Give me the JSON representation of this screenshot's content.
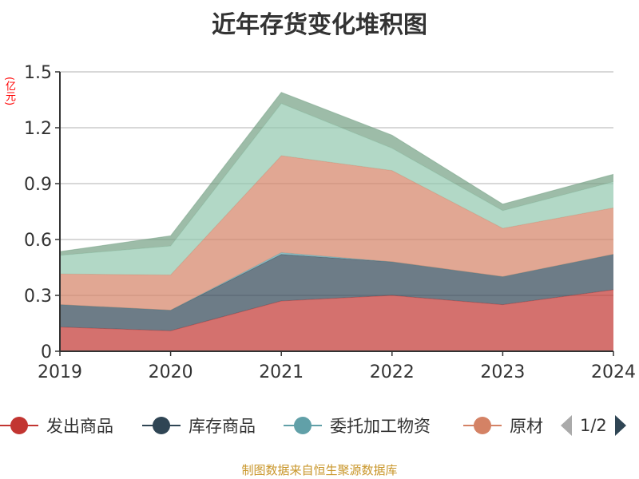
{
  "chart_data": {
    "type": "area",
    "stacked": true,
    "title": "近年存货变化堆积图",
    "ylabel": "(亿元)",
    "xlabel": "",
    "ylim": [
      0,
      1.5
    ],
    "yticks": [
      "0",
      "0.3",
      "0.6",
      "0.9",
      "1.2",
      "1.5"
    ],
    "x": [
      "2019",
      "2020",
      "2021",
      "2022",
      "2023",
      "2024"
    ],
    "grid": true,
    "legend_position": "bottom",
    "series": [
      {
        "name": "发出商品",
        "color": "#c23531",
        "values": [
          0.13,
          0.11,
          0.27,
          0.3,
          0.25,
          0.33
        ]
      },
      {
        "name": "库存商品",
        "color": "#2f4554",
        "values": [
          0.12,
          0.11,
          0.25,
          0.18,
          0.15,
          0.19
        ]
      },
      {
        "name": "委托加工物资",
        "color": "#61a0a8",
        "values": [
          0.0,
          0.0,
          0.01,
          0.0,
          0.0,
          0.0
        ]
      },
      {
        "name": "原材",
        "color": "#d48265",
        "values": [
          0.165,
          0.19,
          0.52,
          0.49,
          0.26,
          0.25
        ]
      },
      {
        "color": "#91c7ae",
        "values": [
          0.1,
          0.155,
          0.28,
          0.12,
          0.095,
          0.14
        ]
      },
      {
        "color": "#749f83",
        "values": [
          0.02,
          0.055,
          0.06,
          0.07,
          0.035,
          0.04
        ]
      }
    ]
  },
  "legend": {
    "page": "1/2"
  },
  "footer": "制图数据来自恒生聚源数据库"
}
